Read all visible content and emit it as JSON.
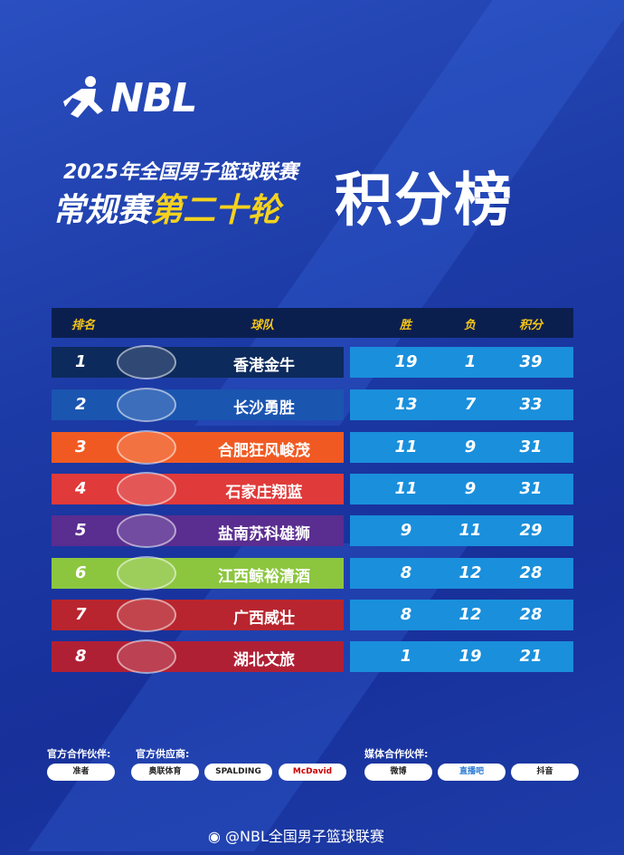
{
  "logo": "NBL",
  "subtitle": "2025年全国男子篮球联赛",
  "round_prefix": "常规赛",
  "round_highlight": "第二十轮",
  "main_title": "积分榜",
  "headers": {
    "rank": "排名",
    "team": "球队",
    "wins": "胜",
    "losses": "负",
    "points": "积分"
  },
  "rows": [
    {
      "rank": "1",
      "team": "香港金牛",
      "w": "19",
      "l": "1",
      "p": "39",
      "color": "#0c2a5c"
    },
    {
      "rank": "2",
      "team": "长沙勇胜",
      "w": "13",
      "l": "7",
      "p": "33",
      "color": "#1a55b0"
    },
    {
      "rank": "3",
      "team": "合肥狂风峻茂",
      "w": "11",
      "l": "9",
      "p": "31",
      "color": "#f05a22"
    },
    {
      "rank": "4",
      "team": "石家庄翔蓝",
      "w": "11",
      "l": "9",
      "p": "31",
      "color": "#e03a3a"
    },
    {
      "rank": "5",
      "team": "盐南苏科雄狮",
      "w": "9",
      "l": "11",
      "p": "29",
      "color": "#5a2d90"
    },
    {
      "rank": "6",
      "team": "江西鲸裕清酒",
      "w": "8",
      "l": "12",
      "p": "28",
      "color": "#8cc63f"
    },
    {
      "rank": "7",
      "team": "广西威壮",
      "w": "8",
      "l": "12",
      "p": "28",
      "color": "#b8252e"
    },
    {
      "rank": "8",
      "team": "湖北文旅",
      "w": "1",
      "l": "19",
      "p": "21",
      "color": "#b02035"
    }
  ],
  "partners": {
    "official_label": "官方合作伙伴:",
    "supplier_label": "官方供应商:",
    "media_label": "媒体合作伙伴:",
    "official": [
      "准者"
    ],
    "suppliers": [
      "奥联体育",
      "SPALDING",
      "McDavid"
    ],
    "media": [
      "微博",
      "直播吧",
      "抖音"
    ]
  },
  "footer": "@NBL全国男子篮球联赛"
}
